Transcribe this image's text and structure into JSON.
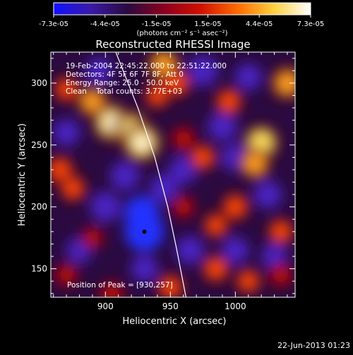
{
  "colorbar": {
    "tick_labels": [
      "-7.3e-05",
      "-4.4e-05",
      "-1.5e-05",
      "1.5e-05",
      "4.4e-05",
      "7.3e-05"
    ],
    "unit_label": "(photons cm⁻² s⁻¹ asec⁻²)",
    "range": [
      -7.3e-05,
      7.3e-05
    ],
    "colors": [
      "#1010ff",
      "#3a1aa8",
      "#2a0a40",
      "#8a0020",
      "#d01000",
      "#ff6a00",
      "#ffd040",
      "#ffffff"
    ]
  },
  "chart_data": {
    "type": "heatmap",
    "title": "Reconstructed RHESSI Image",
    "xlabel": "Heliocentric X (arcsec)",
    "ylabel": "Heliocentric Y (arcsec)",
    "xlim": [
      858,
      1046
    ],
    "ylim": [
      127,
      325
    ],
    "x_ticks": [
      900,
      950,
      1000
    ],
    "y_ticks": [
      150,
      200,
      250,
      300
    ],
    "annotations": [
      "19-Feb-2004 22:45:22.000 to 22:51:22.000",
      "Detectors: 4F 5F 6F 7F 8F, Att 0",
      "Energy Range: 25.0 - 50.0 keV",
      "Clean    Total counts: 3.77E+03"
    ],
    "peak_label": "Position of Peak = [930,257]",
    "peak_position": [
      930,
      257
    ],
    "limb_curve": [
      [
        908,
        325
      ],
      [
        925,
        280
      ],
      [
        938,
        240
      ],
      [
        948,
        200
      ],
      [
        955,
        165
      ],
      [
        962,
        127
      ]
    ],
    "hot_spots": [
      {
        "x": 905,
        "y": 268,
        "level": 1.0
      },
      {
        "x": 920,
        "y": 262,
        "level": 0.95
      },
      {
        "x": 928,
        "y": 252,
        "level": 1.0
      },
      {
        "x": 890,
        "y": 285,
        "level": 0.65
      },
      {
        "x": 870,
        "y": 295,
        "level": 0.45
      },
      {
        "x": 945,
        "y": 315,
        "level": 0.7
      },
      {
        "x": 955,
        "y": 300,
        "level": 0.55
      },
      {
        "x": 1040,
        "y": 300,
        "level": 0.75
      },
      {
        "x": 1020,
        "y": 252,
        "level": 0.85
      },
      {
        "x": 1015,
        "y": 235,
        "level": 0.7
      },
      {
        "x": 995,
        "y": 285,
        "level": 0.55
      },
      {
        "x": 975,
        "y": 240,
        "level": 0.5
      },
      {
        "x": 960,
        "y": 255,
        "level": 0.4
      },
      {
        "x": 865,
        "y": 230,
        "level": 0.55
      },
      {
        "x": 875,
        "y": 215,
        "level": 0.5
      },
      {
        "x": 1000,
        "y": 200,
        "level": 0.55
      },
      {
        "x": 985,
        "y": 185,
        "level": 0.45
      },
      {
        "x": 1035,
        "y": 180,
        "level": 0.5
      },
      {
        "x": 985,
        "y": 150,
        "level": 0.55
      },
      {
        "x": 1010,
        "y": 140,
        "level": 0.45
      },
      {
        "x": 1035,
        "y": 145,
        "level": 0.4
      },
      {
        "x": 950,
        "y": 135,
        "level": 0.5
      },
      {
        "x": 905,
        "y": 130,
        "level": 0.4
      },
      {
        "x": 870,
        "y": 145,
        "level": 0.35
      },
      {
        "x": 960,
        "y": 200,
        "level": 0.35
      },
      {
        "x": 890,
        "y": 175,
        "level": 0.3
      },
      {
        "x": 940,
        "y": 290,
        "level": 0.45
      }
    ],
    "cold_spots": [
      {
        "x": 930,
        "y": 180,
        "level": 1.0
      },
      {
        "x": 928,
        "y": 195,
        "level": 0.8
      },
      {
        "x": 900,
        "y": 200,
        "level": 0.6
      },
      {
        "x": 915,
        "y": 225,
        "level": 0.55
      },
      {
        "x": 945,
        "y": 215,
        "level": 0.5
      },
      {
        "x": 960,
        "y": 230,
        "level": 0.5
      },
      {
        "x": 990,
        "y": 265,
        "level": 0.55
      },
      {
        "x": 1000,
        "y": 240,
        "level": 0.5
      },
      {
        "x": 975,
        "y": 310,
        "level": 0.6
      },
      {
        "x": 1010,
        "y": 305,
        "level": 0.45
      },
      {
        "x": 870,
        "y": 260,
        "level": 0.45
      },
      {
        "x": 1025,
        "y": 210,
        "level": 0.5
      },
      {
        "x": 1000,
        "y": 165,
        "level": 0.45
      },
      {
        "x": 965,
        "y": 165,
        "level": 0.5
      },
      {
        "x": 880,
        "y": 165,
        "level": 0.4
      },
      {
        "x": 1030,
        "y": 160,
        "level": 0.4
      },
      {
        "x": 930,
        "y": 150,
        "level": 0.45
      },
      {
        "x": 895,
        "y": 310,
        "level": 0.4
      }
    ]
  },
  "footer": {
    "timestamp": "22-Jun-2013 01:23"
  }
}
